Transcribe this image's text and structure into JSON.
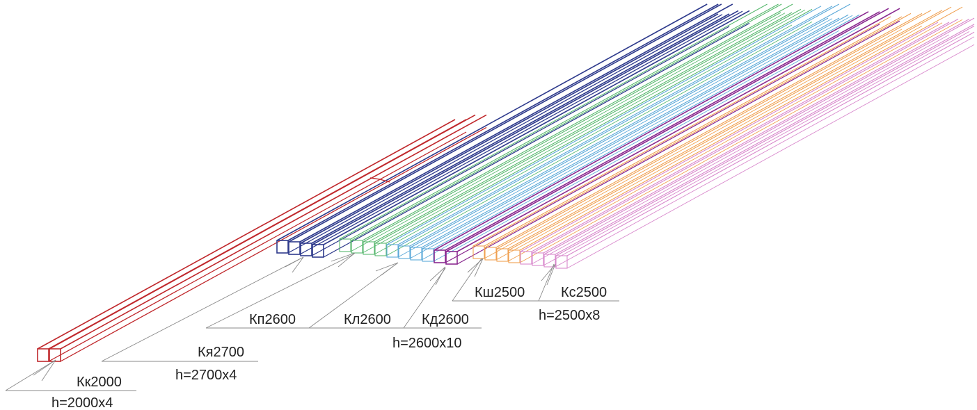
{
  "colors": {
    "kk": "#c0282c",
    "ky": "#2e3a8c",
    "kp": "#3a4ea8",
    "kl": "#58b86e",
    "kl_blue": "#5aa8d8",
    "kd": "#8a2a90",
    "ksh": "#f0a050",
    "ks": "#d888cc",
    "leader": "#8a8a8a",
    "text": "#222222"
  },
  "groups": [
    {
      "id": "kk",
      "label": "Кк2000",
      "height_label": "h=2000x4",
      "count": 2,
      "color": "#c0282c"
    },
    {
      "id": "ky",
      "label": "Кя2700",
      "height_label": "h=2700x4",
      "count": 4,
      "color": "#2e3a8c"
    },
    {
      "id": "kp",
      "label": "Кп2600",
      "count": 1,
      "color": "#3a4ea8"
    },
    {
      "id": "kl",
      "label": "Кл2600",
      "count": 8,
      "color": "#58b86e"
    },
    {
      "id": "kd",
      "label": "Кд2600",
      "height_label": "h=2600x10",
      "count": 2,
      "color": "#8a2a90"
    },
    {
      "id": "ksh",
      "label": "Кш2500",
      "count": 4,
      "color": "#f0a050"
    },
    {
      "id": "ks",
      "label": "Кс2500",
      "height_label": "h=2500x8",
      "count": 4,
      "color": "#d888cc"
    }
  ]
}
